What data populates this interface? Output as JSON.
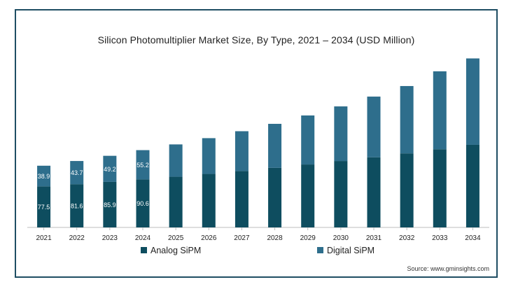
{
  "chart_data": {
    "type": "bar",
    "stacked": true,
    "title": "Silicon Photomultiplier Market Size, By Type, 2021 – 2034 (USD Million)",
    "xlabel": "",
    "ylabel": "",
    "categories": [
      "2021",
      "2022",
      "2023",
      "2024",
      "2025",
      "2026",
      "2027",
      "2028",
      "2029",
      "2030",
      "2031",
      "2032",
      "2033",
      "2034"
    ],
    "series": [
      {
        "name": "Analog SiPM",
        "color": "#0e4d5f",
        "values": [
          77.5,
          81.6,
          85.9,
          90.6,
          95.6,
          100.9,
          106.5,
          112.4,
          118.7,
          125.3,
          132.3,
          139.7,
          147.5,
          155.8
        ],
        "labels": [
          "77.5",
          "81.6",
          "85.9",
          "90.6",
          "",
          "",
          "",
          "",
          "",
          "",
          "",
          "",
          "",
          ""
        ]
      },
      {
        "name": "Digital SiPM",
        "color": "#2e6e8c",
        "values": [
          38.9,
          43.7,
          49.2,
          55.2,
          61.0,
          67.5,
          75.0,
          83.0,
          92.5,
          103.0,
          114.5,
          127.0,
          147.0,
          163.0
        ],
        "labels": [
          "38.9",
          "43.7",
          "49.2",
          "55.2",
          "",
          "",
          "",
          "",
          "",
          "",
          "",
          "",
          "",
          ""
        ]
      }
    ],
    "ylim": [
      0,
      330
    ],
    "grid": false,
    "legend_position": "bottom"
  },
  "source": "Source: www.gminsights.com"
}
